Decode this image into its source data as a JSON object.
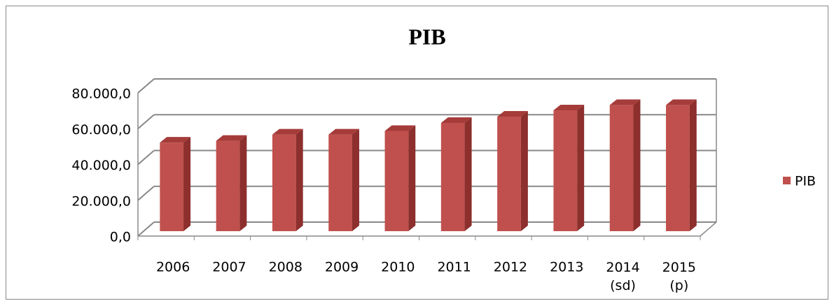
{
  "chart_data": {
    "type": "bar3d",
    "title": "PIB",
    "categories": [
      "2006",
      "2007",
      "2008",
      "2009",
      "2010",
      "2011",
      "2012",
      "2013",
      "2014 (sd)",
      "2015 (p)"
    ],
    "series": [
      {
        "name": "PIB",
        "color": "#c0504d",
        "values": [
          49500,
          50500,
          54000,
          54000,
          56000,
          60500,
          64000,
          67500,
          70500,
          70500
        ]
      }
    ],
    "ylim": [
      0,
      80000
    ],
    "yticks": [
      {
        "value": 0,
        "label": "0,0"
      },
      {
        "value": 20000,
        "label": "20.000,0"
      },
      {
        "value": 40000,
        "label": "40.000,0"
      },
      {
        "value": 60000,
        "label": "60.000,0"
      },
      {
        "value": 80000,
        "label": "80.000,0"
      }
    ],
    "grid": true,
    "legend": "right"
  }
}
